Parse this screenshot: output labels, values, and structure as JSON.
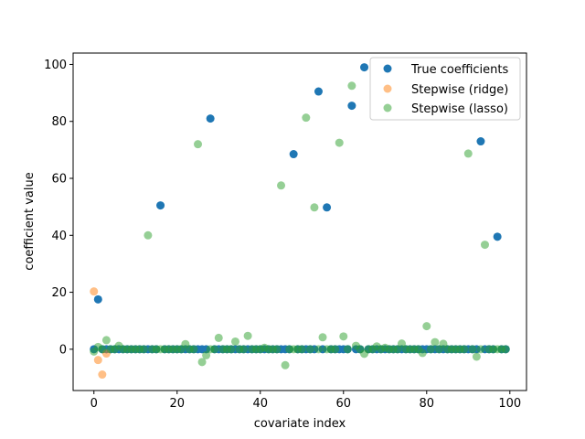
{
  "chart_data": {
    "type": "scatter",
    "title": "",
    "xlabel": "covariate index",
    "ylabel": "coefficient value",
    "xlim": [
      -5,
      104
    ],
    "ylim": [
      -14.5,
      104
    ],
    "xticks": [
      0,
      20,
      40,
      60,
      80,
      100
    ],
    "yticks": [
      0,
      20,
      40,
      60,
      80,
      100
    ],
    "grid": false,
    "legend_position": "top-right",
    "series": [
      {
        "name": "True coefficients",
        "color": "#1f77b4",
        "alpha": 1.0,
        "x": [
          0,
          1,
          2,
          3,
          4,
          5,
          6,
          7,
          8,
          9,
          10,
          11,
          12,
          13,
          14,
          15,
          16,
          17,
          18,
          19,
          20,
          21,
          22,
          23,
          24,
          25,
          26,
          27,
          28,
          29,
          30,
          31,
          32,
          33,
          34,
          35,
          36,
          37,
          38,
          39,
          40,
          41,
          42,
          43,
          44,
          45,
          46,
          47,
          48,
          49,
          50,
          51,
          52,
          53,
          54,
          55,
          56,
          57,
          58,
          59,
          60,
          61,
          62,
          63,
          64,
          65,
          66,
          67,
          68,
          69,
          70,
          71,
          72,
          73,
          74,
          75,
          76,
          77,
          78,
          79,
          80,
          81,
          82,
          83,
          84,
          85,
          86,
          87,
          88,
          89,
          90,
          91,
          92,
          93,
          94,
          95,
          96,
          97,
          98,
          99
        ],
        "y": [
          0,
          17.5,
          0,
          0,
          0,
          0,
          0,
          0,
          0,
          0,
          0,
          0,
          0,
          0,
          0,
          0,
          50.5,
          0,
          0,
          0,
          0,
          0,
          0,
          0,
          0,
          0,
          0,
          0,
          81,
          0,
          0,
          0,
          0,
          0,
          0,
          0,
          0,
          0,
          0,
          0,
          0,
          0,
          0,
          0,
          0,
          0,
          0,
          0,
          68.5,
          0,
          0,
          0,
          0,
          0,
          90.5,
          0,
          49.8,
          0,
          0,
          0,
          0,
          0,
          85.5,
          0,
          0,
          99,
          0,
          0,
          0,
          0,
          0,
          0,
          0,
          0,
          0,
          0,
          0,
          0,
          0,
          0,
          0,
          0,
          0,
          0,
          0,
          0,
          0,
          0,
          0,
          0,
          0,
          0,
          0,
          73,
          0,
          0,
          0,
          39.5,
          0,
          0
        ]
      },
      {
        "name": "Stepwise (ridge)",
        "color": "#ff7f0e",
        "alpha": 0.5,
        "x": [
          0,
          1,
          2,
          3
        ],
        "y": [
          20.3,
          -3.8,
          -8.9,
          -1.5
        ]
      },
      {
        "name": "Stepwise (lasso)",
        "color": "#2ca02c",
        "alpha": 0.5,
        "x": [
          0,
          1,
          2,
          3,
          4,
          5,
          6,
          7,
          8,
          9,
          10,
          11,
          12,
          13,
          14,
          15,
          16,
          17,
          18,
          19,
          20,
          21,
          22,
          23,
          24,
          25,
          26,
          27,
          28,
          29,
          30,
          31,
          32,
          33,
          34,
          35,
          36,
          37,
          38,
          39,
          40,
          41,
          42,
          43,
          44,
          45,
          46,
          47,
          48,
          49,
          50,
          51,
          52,
          53,
          54,
          55,
          56,
          57,
          58,
          59,
          60,
          61,
          62,
          63,
          64,
          65,
          66,
          67,
          68,
          69,
          70,
          71,
          72,
          73,
          74,
          75,
          76,
          77,
          78,
          79,
          80,
          81,
          82,
          83,
          84,
          85,
          86,
          87,
          88,
          89,
          90,
          91,
          92,
          93,
          94,
          95,
          96,
          97,
          98,
          99
        ],
        "y": [
          -0.8,
          0.8,
          0,
          3.2,
          0,
          0,
          1.2,
          0,
          0,
          0,
          0,
          0,
          0,
          40,
          0,
          0,
          0,
          0,
          0,
          0,
          0,
          0,
          1.8,
          0,
          0,
          72,
          -4.5,
          -2.1,
          0,
          0,
          4,
          0,
          0,
          0,
          2.7,
          0,
          0,
          4.7,
          0,
          0,
          0,
          0.5,
          0,
          0,
          0,
          57.5,
          -5.6,
          0,
          0,
          0,
          0,
          81.3,
          0,
          49.8,
          0,
          4.2,
          0,
          0,
          0,
          72.5,
          4.5,
          0,
          92.5,
          1.2,
          0,
          -1.6,
          0,
          0,
          1,
          0,
          0.5,
          0,
          0,
          0,
          2,
          0,
          0,
          0,
          0,
          -1.3,
          8.1,
          0,
          2.5,
          0,
          1.9,
          0,
          0,
          0,
          0,
          0,
          68.7,
          0,
          -2.6,
          0,
          36.7,
          0,
          0,
          0,
          0,
          0
        ]
      }
    ]
  }
}
